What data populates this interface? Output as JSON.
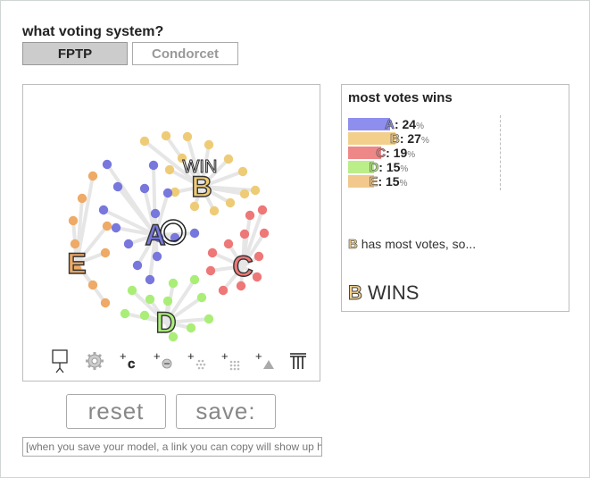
{
  "question": "what voting system?",
  "systems": [
    {
      "label": "FPTP",
      "active": true
    },
    {
      "label": "Condorcet",
      "active": false
    }
  ],
  "canvas": {
    "win_label": "WIN",
    "candidates": [
      {
        "id": "A",
        "color": "#7777dd"
      },
      {
        "id": "B",
        "color": "#eecc77"
      },
      {
        "id": "C",
        "color": "#ee7777"
      },
      {
        "id": "D",
        "color": "#aaee77"
      },
      {
        "id": "E",
        "color": "#eeaa66"
      }
    ]
  },
  "toolbar": {
    "tools": [
      {
        "name": "voter-tool-icon"
      },
      {
        "name": "gear-icon"
      },
      {
        "name": "add-candidate-icon",
        "glyph": "c"
      },
      {
        "name": "add-voter-icon"
      },
      {
        "name": "add-voter-group-icon"
      },
      {
        "name": "add-voter-grid-icon"
      },
      {
        "name": "add-triangle-icon"
      },
      {
        "name": "trash-icon"
      }
    ]
  },
  "buttons": {
    "reset_label": "reset",
    "save_label": "save:"
  },
  "link_field": {
    "value": "[when you save your model, a link you can copy will show up here]"
  },
  "results": {
    "title": "most votes wins",
    "rows": [
      {
        "id": "A",
        "color": "#8e8eee",
        "value": 24
      },
      {
        "id": "B",
        "color": "#f2d08c",
        "value": 27
      },
      {
        "id": "C",
        "color": "#ee8888",
        "value": 19
      },
      {
        "id": "D",
        "color": "#bbee88",
        "value": 15
      },
      {
        "id": "E",
        "color": "#f2c88c",
        "value": 15
      }
    ],
    "pct_sign": "%",
    "most_votes_text": "has most votes, so...",
    "winner": "B",
    "wins_text": "WINS"
  }
}
